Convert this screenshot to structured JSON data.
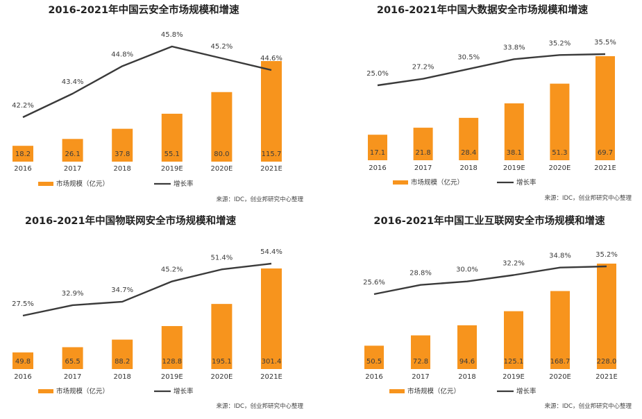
{
  "colors": {
    "bar": "#f7941d",
    "bar_top": "#f9a646",
    "line": "#3a3a3a",
    "value_text": "#3a3a3a",
    "title_text": "#222222",
    "axis_text": "#333333",
    "source_text": "#444444"
  },
  "chart_data": [
    {
      "type": "bar",
      "title": "2016-2021年中国云安全市场规模和增速",
      "categories": [
        "2016",
        "2017",
        "2018",
        "2019E",
        "2020E",
        "2021E"
      ],
      "series": [
        {
          "name": "市场规模（亿元）",
          "type": "bar",
          "values": [
            18.2,
            26.1,
            37.8,
            55.1,
            80.0,
            115.7
          ],
          "labels": [
            "18.2",
            "26.1",
            "37.8",
            "55.1",
            "80.0",
            "115.7"
          ]
        },
        {
          "name": "增长率",
          "type": "line",
          "values": [
            42.2,
            43.4,
            44.8,
            45.8,
            45.2,
            44.6
          ],
          "labels": [
            "42.2%",
            "43.4%",
            "44.8%",
            "45.8%",
            "45.2%",
            "44.6%"
          ]
        }
      ],
      "legend_position": "bottom-left",
      "source": "来源：IDC，创业邦研究中心整理"
    },
    {
      "type": "bar",
      "title": "2016-2021年中国大数据安全市场规模和增速",
      "categories": [
        "2016",
        "2017",
        "2018",
        "2019E",
        "2020E",
        "2021E"
      ],
      "series": [
        {
          "name": "市场规模（亿元）",
          "type": "bar",
          "values": [
            17.1,
            21.8,
            28.4,
            38.1,
            51.3,
            69.7
          ],
          "labels": [
            "17.1",
            "21.8",
            "28.4",
            "38.1",
            "51.3",
            "69.7"
          ]
        },
        {
          "name": "增长率",
          "type": "line",
          "values": [
            25.0,
            27.2,
            30.5,
            33.8,
            35.2,
            35.5
          ],
          "labels": [
            "25.0%",
            "27.2%",
            "30.5%",
            "33.8%",
            "35.2%",
            "35.5%"
          ]
        }
      ],
      "legend_position": "bottom-left",
      "source": "来源：IDC，创业邦研究中心整理"
    },
    {
      "type": "bar",
      "title": "2016-2021年中国物联网安全市场规模和增速",
      "categories": [
        "2016",
        "2017",
        "2018",
        "2019E",
        "2020E",
        "2021E"
      ],
      "series": [
        {
          "name": "市场规模（亿元）",
          "type": "bar",
          "values": [
            49.8,
            65.5,
            88.2,
            128.8,
            195.1,
            301.4
          ],
          "labels": [
            "49.8",
            "65.5",
            "88.2",
            "128.8",
            "195.1",
            "301.4"
          ]
        },
        {
          "name": "增长率",
          "type": "line",
          "values": [
            27.5,
            32.9,
            34.7,
            45.2,
            51.4,
            54.4
          ],
          "labels": [
            "27.5%",
            "32.9%",
            "34.7%",
            "45.2%",
            "51.4%",
            "54.4%"
          ]
        }
      ],
      "legend_position": "bottom-left",
      "source": "来源：IDC，创业邦研究中心整理"
    },
    {
      "type": "bar",
      "title": "2016-2021年中国工业互联网安全市场规模和增速",
      "categories": [
        "2016",
        "2017",
        "2018",
        "2019E",
        "2020E",
        "2021E"
      ],
      "series": [
        {
          "name": "市场规模（亿元）",
          "type": "bar",
          "values": [
            50.5,
            72.8,
            94.6,
            125.1,
            168.7,
            228.0
          ],
          "labels": [
            "50.5",
            "72.8",
            "94.6",
            "125.1",
            "168.7",
            "228.0"
          ]
        },
        {
          "name": "增长率",
          "type": "line",
          "values": [
            25.6,
            28.8,
            30.0,
            32.2,
            34.8,
            35.2
          ],
          "labels": [
            "25.6%",
            "28.8%",
            "30.0%",
            "32.2%",
            "34.8%",
            "35.2%"
          ]
        }
      ],
      "legend_position": "bottom-left",
      "source": "来源：IDC，创业邦研究中心整理"
    }
  ]
}
